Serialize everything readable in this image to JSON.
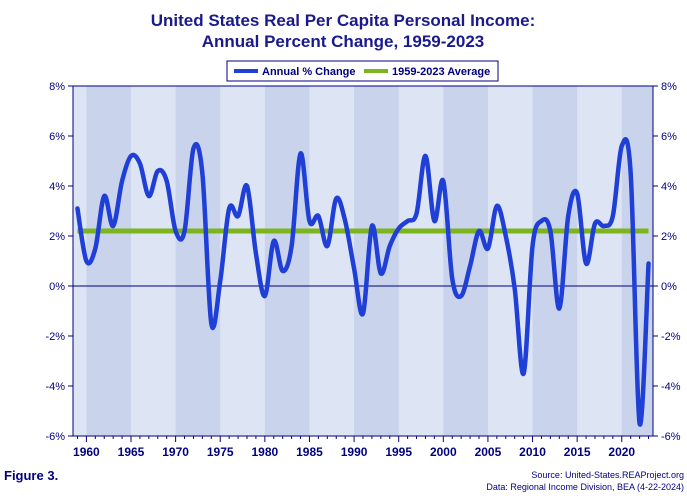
{
  "chart_data": {
    "type": "line",
    "title_line1": "United States Real Per Capita Personal Income:",
    "title_line2": "Annual Percent Change, 1959-2023",
    "xlabel": "",
    "ylabel": "",
    "ylim": [
      -6,
      8
    ],
    "xlim": [
      1958.5,
      2023.5
    ],
    "y_ticks": [
      8,
      6,
      4,
      2,
      0,
      -2,
      -4,
      -6
    ],
    "y_tick_labels": [
      "8%",
      "6%",
      "4%",
      "2%",
      "0%",
      "-2%",
      "-4%",
      "-6%"
    ],
    "x_ticks": [
      1960,
      1965,
      1970,
      1975,
      1980,
      1985,
      1990,
      1995,
      2000,
      2005,
      2010,
      2015,
      2020
    ],
    "x_tick_labels": [
      "1960",
      "1965",
      "1970",
      "1975",
      "1980",
      "1985",
      "1990",
      "1995",
      "2000",
      "2005",
      "2010",
      "2015",
      "2020"
    ],
    "legend_placement": "top-center",
    "series": [
      {
        "name": "Annual % Change",
        "color": "#1f3fd6",
        "x": [
          1959,
          1960,
          1961,
          1962,
          1963,
          1964,
          1965,
          1966,
          1967,
          1968,
          1969,
          1970,
          1971,
          1972,
          1973,
          1974,
          1975,
          1976,
          1977,
          1978,
          1979,
          1980,
          1981,
          1982,
          1983,
          1984,
          1985,
          1986,
          1987,
          1988,
          1989,
          1990,
          1991,
          1992,
          1993,
          1994,
          1995,
          1996,
          1997,
          1998,
          1999,
          2000,
          2001,
          2002,
          2003,
          2004,
          2005,
          2006,
          2007,
          2008,
          2009,
          2010,
          2011,
          2012,
          2013,
          2014,
          2015,
          2016,
          2017,
          2018,
          2019,
          2020,
          2021,
          2022,
          2023
        ],
        "values": [
          3.1,
          1.0,
          1.5,
          3.6,
          2.4,
          4.2,
          5.2,
          4.9,
          3.6,
          4.6,
          4.2,
          2.2,
          2.2,
          5.5,
          4.5,
          -1.5,
          0.2,
          3.1,
          2.8,
          4.0,
          1.3,
          -0.4,
          1.8,
          0.6,
          1.6,
          5.3,
          2.6,
          2.8,
          1.6,
          3.5,
          2.6,
          0.7,
          -1.1,
          2.4,
          0.5,
          1.6,
          2.3,
          2.6,
          2.9,
          5.2,
          2.6,
          4.2,
          0.3,
          -0.4,
          0.8,
          2.2,
          1.5,
          3.2,
          2.0,
          -0.1,
          -3.5,
          1.6,
          2.6,
          2.2,
          -0.9,
          2.8,
          3.7,
          0.9,
          2.5,
          2.4,
          2.8,
          5.6,
          4.5,
          -5.5,
          0.9
        ]
      },
      {
        "name": "1959-2023 Average",
        "color": "#7cb51e",
        "x": [
          1959,
          2023
        ],
        "values": [
          2.2,
          2.2
        ]
      }
    ]
  },
  "figure_label": "Figure 3.",
  "source_line1": "Source: United-States.REAProject.org",
  "source_line2": "Data: Regional Income Division, BEA (4-22-2024)",
  "colors": {
    "title": "#1a1a8c",
    "axis": "#000080",
    "band_dark": "#c9d3ec",
    "band_light": "#dde4f3",
    "plot_border": "#000080"
  }
}
